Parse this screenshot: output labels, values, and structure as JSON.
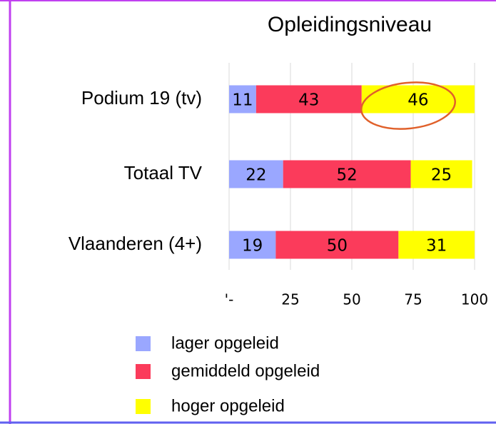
{
  "chart_data": {
    "type": "stacked-bar-horizontal",
    "title": "Opleidingsniveau",
    "categories": [
      "Podium 19 (tv)",
      "Totaal TV",
      "Vlaanderen (4+)"
    ],
    "series": [
      {
        "name": "lager opgeleid",
        "color": "#9aa7ff",
        "values": [
          11,
          22,
          19
        ]
      },
      {
        "name": "gemiddeld opgeleid",
        "color": "#fb3b5b",
        "values": [
          43,
          52,
          50
        ]
      },
      {
        "name": "hoger opgeleid",
        "color": "#ffff00",
        "values": [
          46,
          25,
          31
        ]
      }
    ],
    "xlim": [
      0,
      100
    ],
    "xticks": [
      {
        "value": 0,
        "label": "'-"
      },
      25,
      50,
      75,
      100
    ],
    "grid": true
  }
}
